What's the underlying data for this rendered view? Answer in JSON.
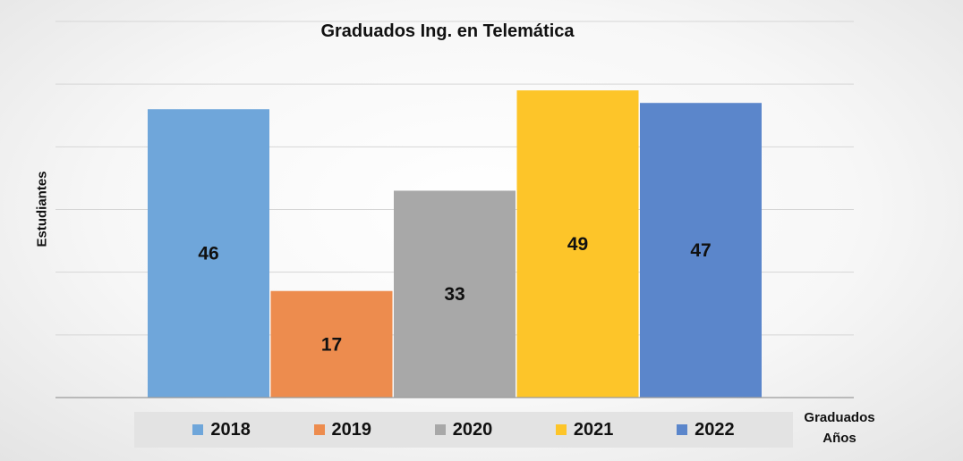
{
  "chart_data": {
    "type": "bar",
    "title": "Graduados Ing. en Telemática",
    "xlabel_line1": "Graduados",
    "xlabel_line2": "Años",
    "ylabel": "Estudiantes",
    "ylim": [
      0,
      60
    ],
    "grid": true,
    "legend_position": "bottom",
    "categories": [
      "2018",
      "2019",
      "2020",
      "2021",
      "2022"
    ],
    "values": [
      46,
      17,
      33,
      49,
      47
    ],
    "colors": [
      "#6fa6da",
      "#ed8c4e",
      "#a8a8a8",
      "#fdc529",
      "#5b86cb"
    ]
  }
}
